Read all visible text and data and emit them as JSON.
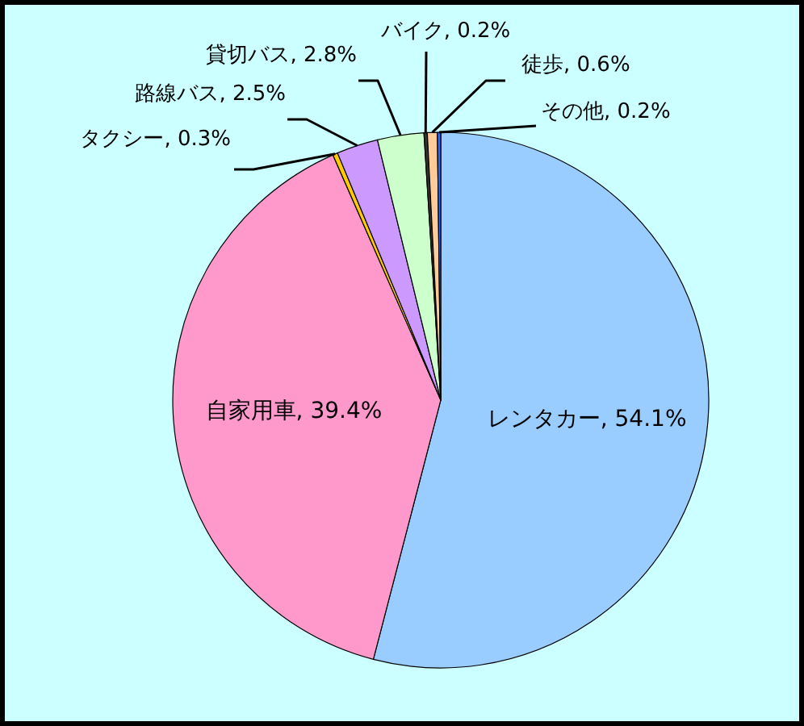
{
  "chart_data": {
    "type": "pie",
    "categories": [
      "レンタカー",
      "自家用車",
      "タクシー",
      "路線バス",
      "貸切バス",
      "バイク",
      "徒歩",
      "その他"
    ],
    "values": [
      54.1,
      39.4,
      0.3,
      2.5,
      2.8,
      0.2,
      0.6,
      0.2
    ],
    "value_labels": [
      "54.1%",
      "39.4%",
      "0.3%",
      "2.5%",
      "2.8%",
      "0.2%",
      "0.6%",
      "0.2%"
    ],
    "colors": [
      "#99ccff",
      "#ff99cc",
      "#ffcc00",
      "#cc99ff",
      "#ccffcc",
      "#333333",
      "#ffcc99",
      "#3366ff"
    ],
    "legend": false
  }
}
